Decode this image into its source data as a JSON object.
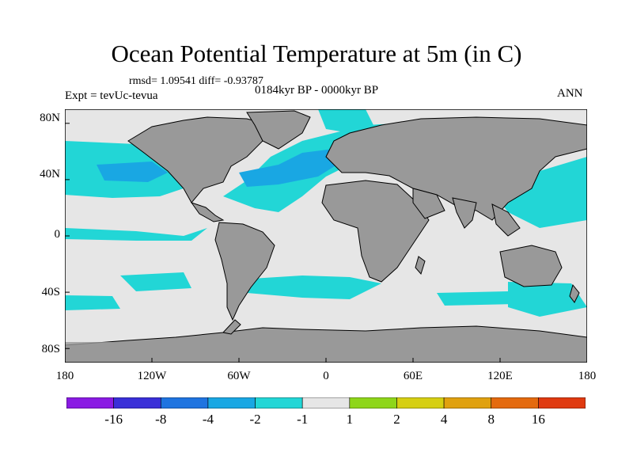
{
  "title": "Ocean Potential Temperature at 5m (in C)",
  "stats": "rmsd= 1.09541 diff= -0.93787",
  "left_label": "Expt = tevUc-tevua",
  "center_label": "0184kyr BP - 0000kyr BP",
  "right_label": "ANN",
  "map": {
    "projection": "cylindrical-equidistant",
    "lon_range": [
      -180,
      180
    ],
    "lat_range": [
      -90,
      90
    ],
    "land_color": "#999999",
    "no_change_color": "#e6e6e6",
    "x_ticks": [
      "180",
      "120W",
      "60W",
      "0",
      "60E",
      "120E",
      "180"
    ],
    "y_ticks": [
      "80N",
      "40N",
      "0",
      "40S",
      "80S"
    ],
    "x_tick_values": [
      -180,
      -120,
      -60,
      0,
      60,
      120,
      180
    ],
    "y_tick_values": [
      80,
      40,
      0,
      -40,
      -80
    ]
  },
  "colorbar": {
    "labels": [
      "-16",
      "-8",
      "-4",
      "-2",
      "-1",
      "1",
      "2",
      "4",
      "8",
      "16"
    ],
    "colors": [
      "#8a1be3",
      "#3a2fd8",
      "#1f74e0",
      "#19a7e3",
      "#22d6d6",
      "#e6e6e6",
      "#8ed61a",
      "#d6cf12",
      "#e0a10f",
      "#e46a0e",
      "#e03a10"
    ]
  }
}
